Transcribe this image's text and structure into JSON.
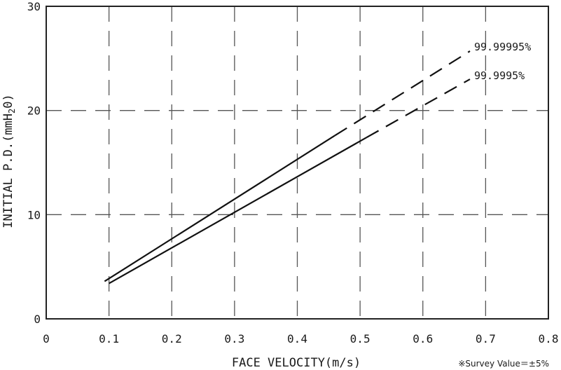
{
  "chart_data": {
    "type": "line",
    "xlabel": "FACE VELOCITY(m/s)",
    "ylabel_parts": {
      "prefix": "INITIAL P.D.(mmH",
      "subscript": "2",
      "suffix": "0)"
    },
    "xlim": [
      0,
      0.8
    ],
    "ylim": [
      0,
      30
    ],
    "x_ticks": [
      {
        "value": 0,
        "label": "0"
      },
      {
        "value": 0.1,
        "label": "0.1"
      },
      {
        "value": 0.2,
        "label": "0.2"
      },
      {
        "value": 0.3,
        "label": "0.3"
      },
      {
        "value": 0.4,
        "label": "0.4"
      },
      {
        "value": 0.5,
        "label": "0.5"
      },
      {
        "value": 0.6,
        "label": "0.6"
      },
      {
        "value": 0.7,
        "label": "0.7"
      },
      {
        "value": 0.8,
        "label": "0.8"
      }
    ],
    "y_ticks": [
      {
        "value": 0,
        "label": "0"
      },
      {
        "value": 10,
        "label": "10"
      },
      {
        "value": 20,
        "label": "20"
      },
      {
        "value": 30,
        "label": "30"
      }
    ],
    "grid": "dashed",
    "series": [
      {
        "name": "99.99995%",
        "solid": [
          [
            0.093,
            3.6
          ],
          [
            0.46,
            17.6
          ]
        ],
        "dashed": [
          [
            0.46,
            17.6
          ],
          [
            0.675,
            25.7
          ]
        ]
      },
      {
        "name": "99.9995%",
        "solid": [
          [
            0.1,
            3.4
          ],
          [
            0.51,
            17.4
          ]
        ],
        "dashed": [
          [
            0.51,
            17.4
          ],
          [
            0.675,
            23.0
          ]
        ]
      }
    ],
    "note": "※Survey Value＝±5%"
  }
}
